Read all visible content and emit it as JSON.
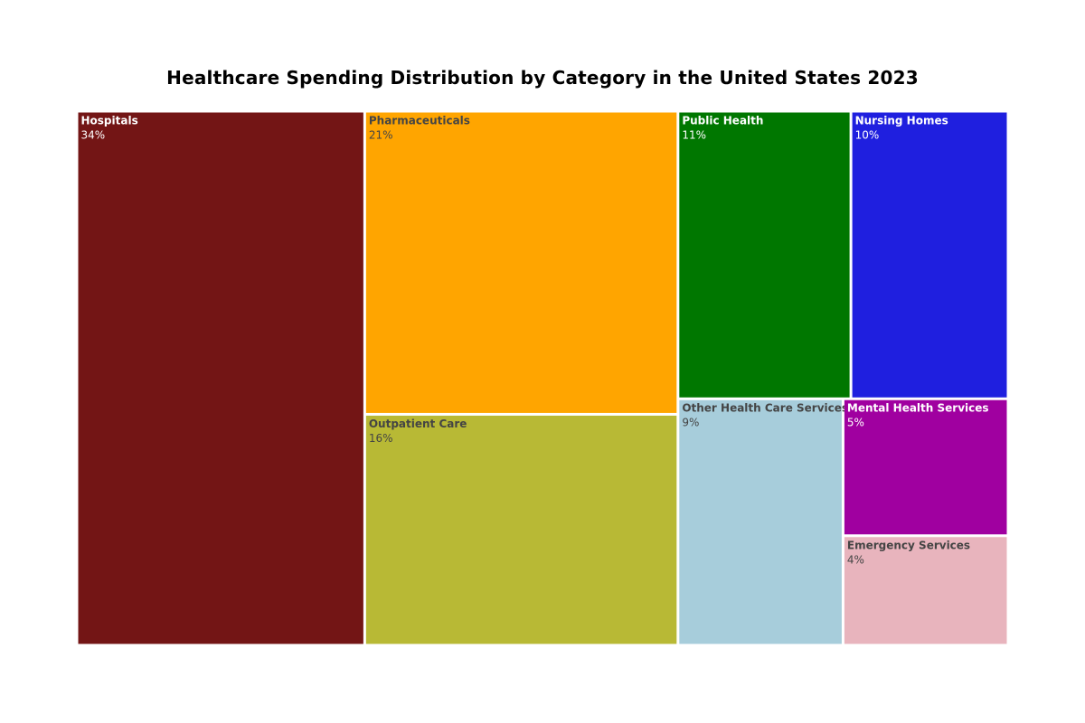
{
  "chart_data": {
    "type": "treemap",
    "title": "Healthcare Spending Distribution by Category in the United States 2023",
    "items": [
      {
        "label": "Hospitals",
        "value": 34,
        "value_text": "34%",
        "color": "#731515",
        "text_color": "#ffffff"
      },
      {
        "label": "Pharmaceuticals",
        "value": 21,
        "value_text": "21%",
        "color": "#ffa500",
        "text_color": "#444444"
      },
      {
        "label": "Outpatient Care",
        "value": 16,
        "value_text": "16%",
        "color": "#b8b935",
        "text_color": "#444444"
      },
      {
        "label": "Public Health",
        "value": 11,
        "value_text": "11%",
        "color": "#007700",
        "text_color": "#ffffff"
      },
      {
        "label": "Nursing Homes",
        "value": 10,
        "value_text": "10%",
        "color": "#1f1fdf",
        "text_color": "#ffffff"
      },
      {
        "label": "Other Health Care Services",
        "value": 9,
        "value_text": "9%",
        "color": "#a7cddb",
        "text_color": "#444444"
      },
      {
        "label": "Mental Health Services",
        "value": 5,
        "value_text": "5%",
        "color": "#a000a0",
        "text_color": "#ffffff"
      },
      {
        "label": "Emergency Services",
        "value": 4,
        "value_text": "4%",
        "color": "#e8b4bd",
        "text_color": "#444444"
      }
    ]
  }
}
